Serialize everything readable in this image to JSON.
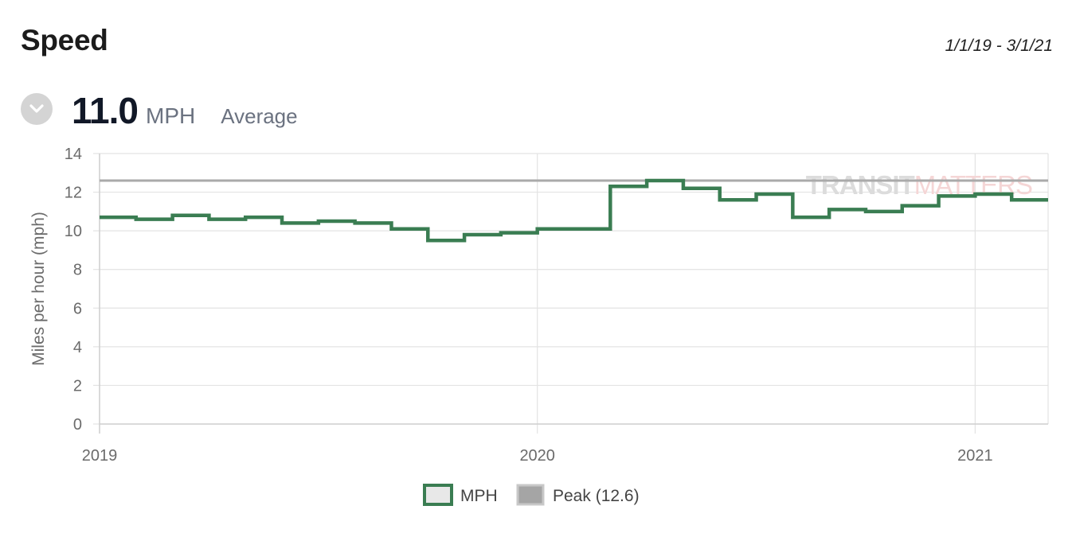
{
  "header": {
    "title": "Speed",
    "date_range": "1/1/19 - 3/1/21"
  },
  "summary": {
    "value": "11.0",
    "unit": "MPH",
    "label": "Average",
    "toggle_icon": "chevron-down-icon"
  },
  "colors": {
    "series": "#3a7d52",
    "peak": "#aaaaaa",
    "grid": "#e3e3e3",
    "axis_text": "#6b6b6b",
    "watermark_dark": "#dcdcdc",
    "watermark_light": "#f5d6d6",
    "legend_fill": "#e8e8e8"
  },
  "chart_data": {
    "type": "line",
    "step": true,
    "ylabel": "Miles per hour (mph)",
    "ylim": [
      0,
      14
    ],
    "yticks": [
      0,
      2,
      4,
      6,
      8,
      10,
      12,
      14
    ],
    "xlim": [
      "2019-01",
      "2021-03"
    ],
    "xticks": [
      {
        "label": "2019",
        "month": "2019-01"
      },
      {
        "label": "2020",
        "month": "2020-01"
      },
      {
        "label": "2021",
        "month": "2021-01"
      }
    ],
    "grid": true,
    "watermark": {
      "part1": "TRANSIT",
      "part2": "MATTERS"
    },
    "legend_position": "bottom",
    "series": [
      {
        "name": "MPH",
        "x": [
          "2019-01",
          "2019-02",
          "2019-03",
          "2019-04",
          "2019-05",
          "2019-06",
          "2019-07",
          "2019-08",
          "2019-09",
          "2019-10",
          "2019-11",
          "2019-12",
          "2020-01",
          "2020-02",
          "2020-03",
          "2020-04",
          "2020-05",
          "2020-06",
          "2020-07",
          "2020-08",
          "2020-09",
          "2020-10",
          "2020-11",
          "2020-12",
          "2021-01",
          "2021-02"
        ],
        "values": [
          10.7,
          10.6,
          10.8,
          10.6,
          10.7,
          10.4,
          10.5,
          10.4,
          10.1,
          9.5,
          9.8,
          9.9,
          10.1,
          10.1,
          12.3,
          12.6,
          12.2,
          11.6,
          11.9,
          10.7,
          11.1,
          11.0,
          11.3,
          11.8,
          11.9,
          11.6
        ]
      },
      {
        "name": "Peak (12.6)",
        "value": 12.6
      }
    ]
  }
}
